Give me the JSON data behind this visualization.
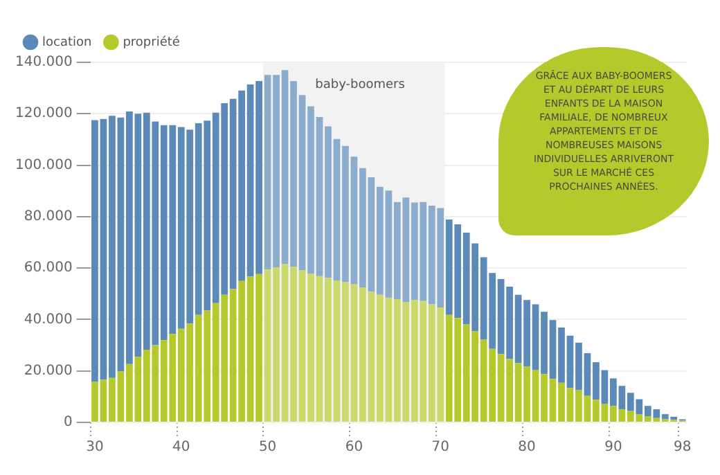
{
  "chart_data": {
    "type": "bar",
    "stacked": true,
    "categories": [
      "30",
      null,
      null,
      null,
      null,
      null,
      null,
      null,
      null,
      null,
      "40",
      null,
      null,
      null,
      null,
      null,
      null,
      null,
      null,
      null,
      "50",
      null,
      null,
      null,
      null,
      null,
      null,
      null,
      null,
      null,
      "60",
      null,
      null,
      null,
      null,
      null,
      null,
      null,
      null,
      null,
      "70",
      null,
      null,
      null,
      null,
      null,
      null,
      null,
      null,
      null,
      "80",
      null,
      null,
      null,
      null,
      null,
      null,
      null,
      null,
      null,
      "90",
      null,
      null,
      null,
      null,
      null,
      null,
      null,
      "98"
    ],
    "series": [
      {
        "name": "propriété",
        "color": "#b5c92c",
        "values": [
          15900,
          16600,
          17300,
          19800,
          22700,
          25600,
          28300,
          30000,
          32000,
          34400,
          36400,
          38400,
          41800,
          43500,
          46400,
          49600,
          51800,
          55000,
          56700,
          57700,
          59400,
          60300,
          61600,
          60600,
          59100,
          57900,
          56900,
          56200,
          55200,
          54500,
          53700,
          52500,
          50800,
          49600,
          48400,
          47900,
          46700,
          47600,
          47200,
          45900,
          44700,
          41800,
          40600,
          38100,
          35400,
          32200,
          28600,
          26600,
          24700,
          23000,
          21700,
          20300,
          18800,
          16900,
          15400,
          13400,
          12500,
          10300,
          8800,
          7100,
          6400,
          5100,
          4400,
          3200,
          2400,
          1700,
          1200,
          1000,
          700
        ]
      },
      {
        "name": "location",
        "color": "#5b89b8",
        "values": [
          101600,
          101400,
          101900,
          98700,
          98200,
          94400,
          92100,
          87000,
          83600,
          81200,
          78400,
          75400,
          74500,
          73800,
          74000,
          74500,
          74000,
          74000,
          74700,
          75000,
          75700,
          74800,
          75400,
          72100,
          68200,
          65000,
          61800,
          58900,
          55000,
          53000,
          49600,
          46400,
          44500,
          42000,
          41700,
          37800,
          40700,
          37900,
          38500,
          38400,
          38600,
          37100,
          36400,
          35700,
          34200,
          32000,
          29500,
          29100,
          28100,
          26600,
          25900,
          25600,
          24200,
          22900,
          21500,
          20300,
          18500,
          16600,
          14600,
          13200,
          10700,
          9100,
          7100,
          5800,
          4000,
          3400,
          2000,
          1200,
          500
        ]
      }
    ],
    "ylim": [
      0,
      140000
    ],
    "yticks": [
      0,
      {
        "value": 20000,
        "label": "20.000"
      },
      {
        "value": 40000,
        "label": "40.000"
      },
      {
        "value": 60000,
        "label": "60.000"
      },
      {
        "value": 80000,
        "label": "80.000"
      },
      {
        "value": 100000,
        "label": "100.000"
      },
      {
        "value": 120000,
        "label": "120.000"
      },
      {
        "value": 140000,
        "label": "140.000"
      }
    ],
    "grid": "y",
    "legend": "top left",
    "bands": [
      {
        "axis": "x",
        "from": "50",
        "to": "70",
        "label": "baby-boomers",
        "color": "#ececec"
      }
    ],
    "annotations": [
      "GRÂCE AUX BABY-BOOMERS ET AU DÉPART DE LEURS ENFANTS DE LA MAISON FAMILIALE, DE NOMBREUX APPARTEMENTS ET DE NOMBREUSES MAISONS INDIVIDUELLES ARRIVERONT SUR LE MARCHÉ CES PROCHAINES ANNÉES."
    ]
  }
}
